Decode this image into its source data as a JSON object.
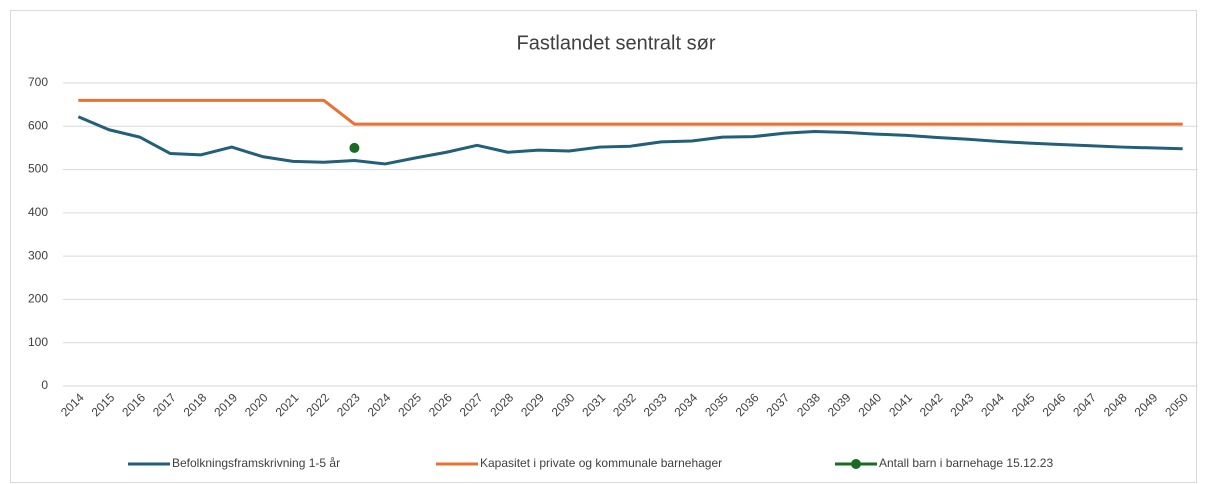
{
  "chart_data": {
    "type": "line",
    "title": "Fastlandet sentralt sør",
    "categories": [
      "2014",
      "2015",
      "2016",
      "2017",
      "2018",
      "2019",
      "2020",
      "2021",
      "2022",
      "2023",
      "2024",
      "2025",
      "2026",
      "2027",
      "2028",
      "2029",
      "2030",
      "2031",
      "2032",
      "2033",
      "2034",
      "2035",
      "2036",
      "2037",
      "2038",
      "2039",
      "2040",
      "2041",
      "2042",
      "2043",
      "2044",
      "2045",
      "2046",
      "2047",
      "2048",
      "2049",
      "2050"
    ],
    "series": [
      {
        "name": "Befolkningsframskrivning 1-5 år",
        "color": "#215f7a",
        "values": [
          622,
          592,
          575,
          537,
          534,
          552,
          530,
          519,
          517,
          521,
          513,
          527,
          540,
          556,
          540,
          545,
          543,
          552,
          554,
          564,
          566,
          575,
          576,
          584,
          588,
          586,
          582,
          579,
          574,
          570,
          565,
          561,
          558,
          555,
          552,
          550,
          548
        ]
      },
      {
        "name": "Kapasitet i private og kommunale barnehager",
        "color": "#e97132",
        "values": [
          660,
          660,
          660,
          660,
          660,
          660,
          660,
          660,
          660,
          605,
          605,
          605,
          605,
          605,
          605,
          605,
          605,
          605,
          605,
          605,
          605,
          605,
          605,
          605,
          605,
          605,
          605,
          605,
          605,
          605,
          605,
          605,
          605,
          605,
          605,
          605,
          605
        ]
      },
      {
        "name": "Antall barn i barnehage 15.12.23",
        "color": "#196b24",
        "markers": true,
        "values": [
          null,
          null,
          null,
          null,
          null,
          null,
          null,
          null,
          null,
          550,
          null,
          null,
          null,
          null,
          null,
          null,
          null,
          null,
          null,
          null,
          null,
          null,
          null,
          null,
          null,
          null,
          null,
          null,
          null,
          null,
          null,
          null,
          null,
          null,
          null,
          null,
          null
        ]
      }
    ],
    "ylim": [
      0,
      700
    ],
    "yticks": [
      0,
      100,
      200,
      300,
      400,
      500,
      600,
      700
    ],
    "grid": true,
    "legend": "bottom"
  }
}
